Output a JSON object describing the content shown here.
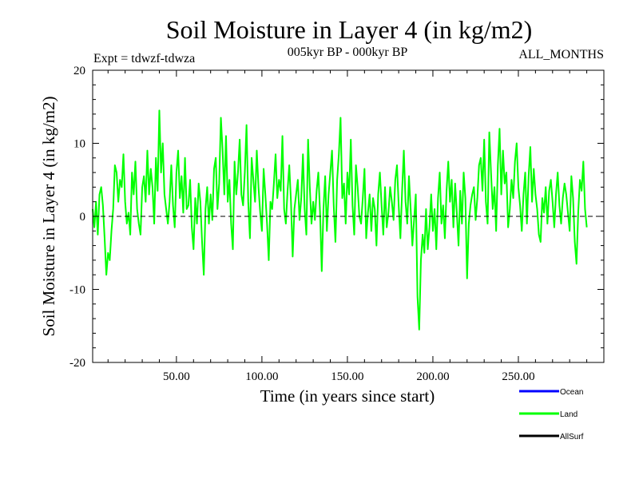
{
  "chart_data": {
    "type": "line",
    "title": "Soil Moisture in Layer 4 (in kg/m2)",
    "subtitle_left": "Expt = tdwzf-tdwza",
    "subtitle_center": "005kyr BP - 000kyr BP",
    "subtitle_right": "ALL_MONTHS",
    "xlabel": "Time (in years since start)",
    "ylabel": "Soil Moisture in Layer 4 (in kg/m2)",
    "xlim": [
      1,
      300
    ],
    "ylim": [
      -20,
      20
    ],
    "x_ticks": [
      50,
      100,
      150,
      200,
      250
    ],
    "x_tick_labels": [
      "50.00",
      "100.00",
      "150.00",
      "200.00",
      "250.00"
    ],
    "y_ticks": [
      -20,
      -10,
      0,
      10,
      20
    ],
    "y_tick_labels": [
      "-20",
      "-10",
      "0",
      "10",
      "20"
    ],
    "zero_line": 0,
    "legend": [
      {
        "name": "Ocean",
        "color": "#0000ff"
      },
      {
        "name": "Land",
        "color": "#00ff00"
      },
      {
        "name": "AllSurf",
        "color": "#000000"
      }
    ],
    "series": [
      {
        "name": "Land",
        "color": "#00ff00",
        "x_start": 1,
        "x_step": 1,
        "values": [
          1.0,
          -1.5,
          2.0,
          -2.5,
          3.0,
          4.0,
          1.5,
          -3.0,
          -8.0,
          -5.0,
          -6.0,
          -2.0,
          1.0,
          7.0,
          6.0,
          2.0,
          5.0,
          4.0,
          8.5,
          2.0,
          -1.0,
          0.5,
          -2.5,
          6.0,
          3.0,
          7.5,
          1.0,
          -1.0,
          -2.5,
          4.0,
          5.5,
          2.0,
          9.0,
          3.0,
          6.5,
          4.0,
          -1.0,
          8.0,
          3.5,
          14.5,
          6.0,
          10.0,
          3.0,
          1.0,
          -1.0,
          2.0,
          7.0,
          1.5,
          -1.5,
          6.0,
          9.0,
          2.5,
          5.5,
          0.5,
          8.0,
          1.0,
          1.5,
          5.0,
          -1.5,
          -4.5,
          2.5,
          -1.0,
          4.5,
          2.0,
          -3.5,
          -8.0,
          1.0,
          4.0,
          -1.0,
          3.0,
          -0.5,
          6.5,
          8.0,
          1.0,
          4.5,
          13.5,
          9.0,
          3.0,
          11.0,
          2.0,
          5.0,
          -1.0,
          -4.5,
          7.5,
          3.0,
          6.0,
          10.5,
          3.0,
          1.5,
          6.0,
          12.5,
          2.0,
          -3.0,
          8.0,
          5.0,
          2.0,
          9.0,
          4.0,
          0.5,
          -2.0,
          6.5,
          3.0,
          -1.0,
          -6.0,
          2.0,
          1.0,
          4.5,
          8.5,
          2.5,
          5.0,
          3.5,
          11.0,
          1.0,
          -1.0,
          3.5,
          7.0,
          2.0,
          -5.5,
          1.0,
          3.0,
          5.0,
          -0.5,
          2.5,
          8.5,
          1.0,
          -2.5,
          10.5,
          4.0,
          -1.0,
          2.0,
          -0.5,
          3.5,
          6.0,
          0.5,
          -7.5,
          1.0,
          5.5,
          -2.0,
          3.0,
          6.0,
          9.0,
          1.5,
          -3.5,
          5.0,
          8.5,
          13.5,
          2.5,
          4.5,
          -1.0,
          6.0,
          3.0,
          10.5,
          1.5,
          -2.5,
          7.0,
          4.0,
          0.0,
          -1.0,
          2.5,
          6.5,
          -3.0,
          0.5,
          3.0,
          -2.0,
          2.5,
          1.0,
          -4.0,
          3.0,
          6.0,
          1.5,
          -2.5,
          4.0,
          -1.5,
          0.5,
          4.0,
          2.0,
          -0.5,
          5.0,
          7.0,
          1.5,
          -3.0,
          3.5,
          9.0,
          2.0,
          -1.0,
          5.5,
          1.0,
          -4.0,
          -0.5,
          3.0,
          -11.0,
          -15.5,
          -6.0,
          -2.5,
          -5.0,
          1.0,
          -4.5,
          -1.5,
          3.0,
          -2.0,
          1.0,
          -4.5,
          2.5,
          6.0,
          -1.0,
          1.5,
          -3.0,
          3.5,
          7.5,
          2.0,
          5.0,
          -1.5,
          4.5,
          0.5,
          -4.0,
          3.5,
          -1.0,
          6.0,
          2.5,
          -8.5,
          -1.0,
          1.5,
          3.0,
          4.0,
          -0.5,
          2.5,
          7.0,
          8.0,
          3.5,
          10.5,
          2.0,
          -1.0,
          11.5,
          6.0,
          1.0,
          4.0,
          -2.0,
          7.0,
          12.0,
          3.0,
          9.0,
          4.5,
          6.0,
          -1.5,
          1.0,
          5.0,
          2.5,
          7.5,
          10.0,
          4.0,
          1.5,
          -2.0,
          3.0,
          6.0,
          -1.0,
          5.5,
          9.5,
          2.0,
          6.5,
          3.0,
          1.0,
          -2.5,
          -3.5,
          2.5,
          0.5,
          4.0,
          -1.0,
          3.5,
          5.0,
          2.0,
          -1.5,
          3.0,
          6.0,
          1.5,
          -1.0,
          2.5,
          4.5,
          3.0,
          0.5,
          -2.0,
          5.5,
          2.5,
          -3.5,
          -6.5,
          0.5,
          5.0,
          3.5,
          7.5,
          1.0,
          -1.5
        ]
      }
    ]
  }
}
